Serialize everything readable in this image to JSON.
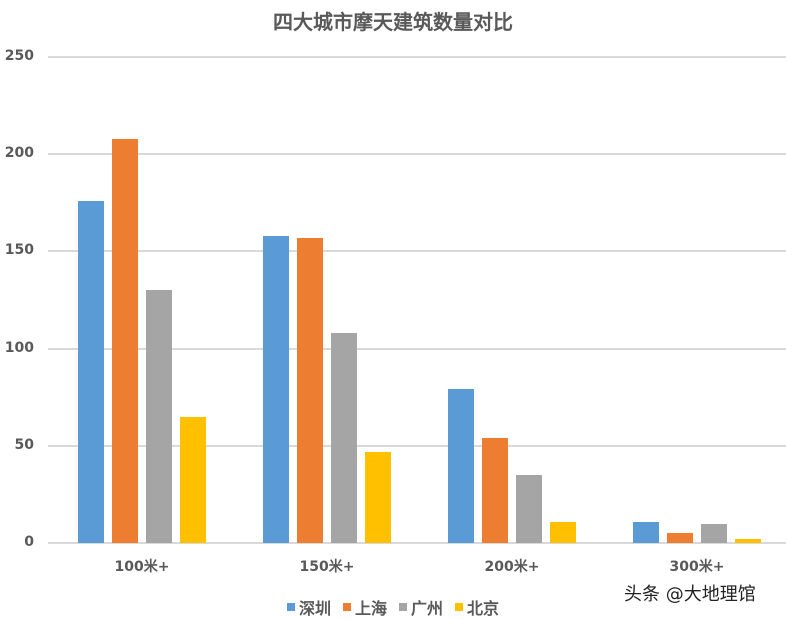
{
  "chart_data": {
    "type": "bar",
    "title": "四大城市摩天建筑数量对比",
    "xlabel": "",
    "ylabel": "",
    "categories": [
      "100米+",
      "150米+",
      "200米+",
      "300米+"
    ],
    "series": [
      {
        "name": "深圳",
        "color": "#5b9bd5",
        "values": [
          176,
          158,
          79,
          11
        ]
      },
      {
        "name": "上海",
        "color": "#ed7d31",
        "values": [
          208,
          157,
          54,
          5
        ]
      },
      {
        "name": "广州",
        "color": "#a5a5a5",
        "values": [
          130,
          108,
          35,
          10
        ]
      },
      {
        "name": "北京",
        "color": "#ffc000",
        "values": [
          65,
          47,
          11,
          2
        ]
      }
    ],
    "ylim": [
      0,
      250
    ],
    "yticks": [
      0,
      50,
      100,
      150,
      200,
      250
    ],
    "grid": true,
    "legend_position": "bottom"
  },
  "watermark": "头条 @大地理馆"
}
